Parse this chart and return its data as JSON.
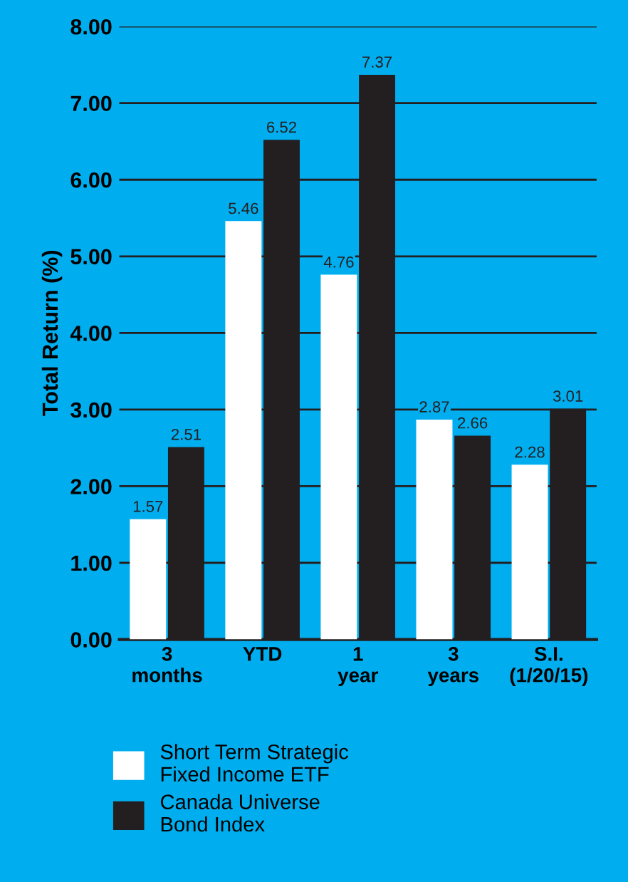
{
  "chart_data": {
    "type": "bar",
    "ylabel": "Total Return (%)",
    "categories": [
      "3\nmonths",
      "YTD",
      "1\nyear",
      "3\nyears",
      "S.I.\n(1/20/15)"
    ],
    "series": [
      {
        "name": "Short Term Strategic\nFixed Income ETF",
        "color": "#ffffff",
        "values": [
          1.57,
          5.46,
          4.76,
          2.87,
          2.28
        ]
      },
      {
        "name": "Canada Universe\nBond Index",
        "color": "#231f20",
        "values": [
          2.51,
          6.52,
          7.37,
          2.66,
          3.01
        ]
      }
    ],
    "ylim": [
      0,
      8
    ],
    "yticks": [
      {
        "value": 0,
        "label": "0.00"
      },
      {
        "value": 1,
        "label": "1.00"
      },
      {
        "value": 2,
        "label": "2.00"
      },
      {
        "value": 3,
        "label": "3.00"
      },
      {
        "value": 4,
        "label": "4.00"
      },
      {
        "value": 5,
        "label": "5.00"
      },
      {
        "value": 6,
        "label": "6.00"
      },
      {
        "value": 7,
        "label": "7.00"
      },
      {
        "value": 8,
        "label": "8.00"
      }
    ],
    "grid": "y",
    "data_labels": true,
    "legend": "bottom"
  }
}
